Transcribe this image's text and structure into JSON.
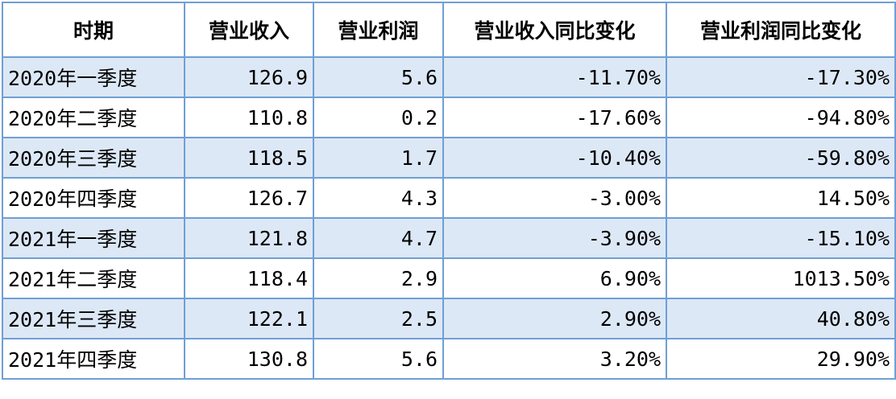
{
  "table": {
    "header": [
      "时期",
      "营业收入",
      "营业利润",
      "营业收入同比变化",
      "营业利润同比变化"
    ],
    "rows": [
      [
        "2020年一季度",
        "126.9",
        "5.6",
        "-11.70%",
        "-17.30%"
      ],
      [
        "2020年二季度",
        "110.8",
        "0.2",
        "-17.60%",
        "-94.80%"
      ],
      [
        "2020年三季度",
        "118.5",
        "1.7",
        "-10.40%",
        "-59.80%"
      ],
      [
        "2020年四季度",
        "126.7",
        "4.3",
        "-3.00%",
        "14.50%"
      ],
      [
        "2021年一季度",
        "121.8",
        "4.7",
        "-3.90%",
        "-15.10%"
      ],
      [
        "2021年二季度",
        "118.4",
        "2.9",
        "6.90%",
        "1013.50%"
      ],
      [
        "2021年三季度",
        "122.1",
        "2.5",
        "2.90%",
        "40.80%"
      ],
      [
        "2021年四季度",
        "130.8",
        "5.6",
        "3.20%",
        "29.90%"
      ]
    ]
  }
}
